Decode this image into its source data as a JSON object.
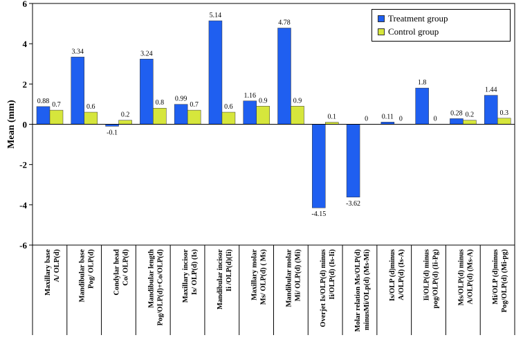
{
  "chart_data": {
    "type": "bar",
    "ylabel": "Mean (mm)",
    "ylim": [
      -6,
      6
    ],
    "yticks": [
      -6,
      -4,
      -2,
      0,
      2,
      4,
      6
    ],
    "categories": [
      [
        "Maxillary base",
        "A/ OLP(d)"
      ],
      [
        "Mandibular base",
        "Pog/ OLP(d)"
      ],
      [
        "Condylar head",
        "Co/ OLP(d)"
      ],
      [
        "Mandibular length",
        "Pog/OLP(d)+Co/OLP(d)"
      ],
      [
        "Maxillary incisor",
        "Is/ OLP(d) (Is)"
      ],
      [
        "Mandibular incisor",
        "Ii /OLP(d)(Ii)"
      ],
      [
        "Maxillary molar",
        "Ms/ OLP(d) ( Ms)"
      ],
      [
        "Mandibular molar",
        "Mi/ OLP(d) (Mi)"
      ],
      [
        "Overjet Is/OLP(d) minus",
        "Ii/OLP(d) (Is-Ii)"
      ],
      [
        "Molar relation Ms/OLP(d)",
        "minusMi/OLp(d) (Ms-Mi)"
      ],
      [
        "Is/OLP (d)minus",
        "A/OLP(d) (Is-A)"
      ],
      [
        "Ii/OLP(d) minus",
        "pog/OLP(d) (Ii-Pg)"
      ],
      [
        "Ms/OLP(d) minus",
        "A/OLP(d) (Ms-A)"
      ],
      [
        "Mi/OLP (d)minus",
        "Pog/OLP(d) (Mi-pg)"
      ]
    ],
    "series": [
      {
        "name": "Treatment group",
        "color": "#1f5ff0",
        "values": [
          0.88,
          3.34,
          -0.1,
          3.24,
          0.99,
          5.14,
          1.16,
          4.78,
          -4.15,
          -3.62,
          0.11,
          1.8,
          0.28,
          1.44
        ]
      },
      {
        "name": "Control group",
        "color": "#d6e63c",
        "values": [
          0.7,
          0.6,
          0.2,
          0.8,
          0.7,
          0.6,
          0.9,
          0.9,
          0.1,
          0,
          0,
          0,
          0.2,
          0.3
        ]
      }
    ],
    "data_labels": [
      [
        "0.88",
        "3.34",
        "-0.1",
        "3.24",
        "0.99",
        "5.14",
        "1.16",
        "4.78",
        "-4.15",
        "-3.62",
        "0.11",
        "1.8",
        "0.28",
        "1.44"
      ],
      [
        "0.7",
        "0.6",
        "0.2",
        "0.8",
        "0.7",
        "0.6",
        "0.9",
        "0.9",
        "0.1",
        "0",
        "0",
        "0",
        "0.2",
        "0.3"
      ]
    ],
    "legend_position": "top-right",
    "grid": false
  }
}
